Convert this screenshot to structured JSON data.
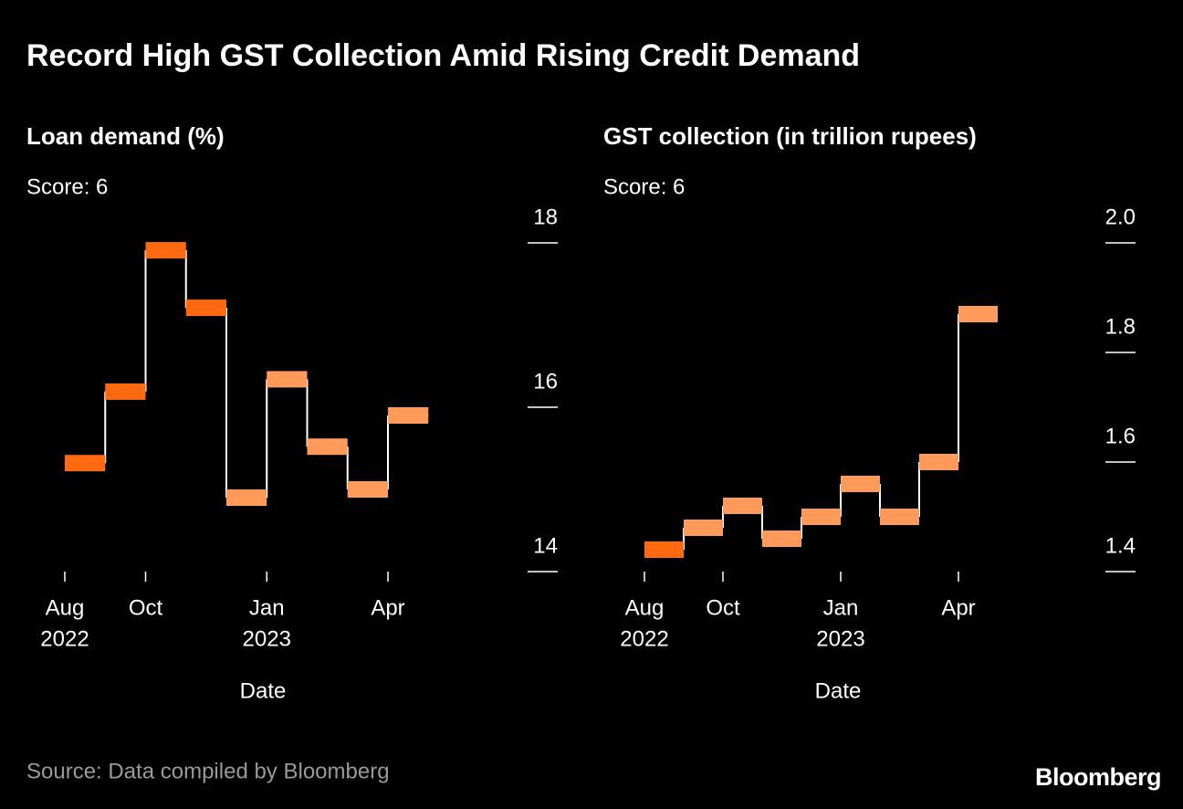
{
  "title": "Record High GST Collection Amid Rising Credit Demand",
  "source": "Source: Data compiled by Bloomberg",
  "logo": "Bloomberg",
  "chart_data": [
    {
      "type": "step",
      "title": "Loan demand (%)",
      "subtitle": "Score: 6",
      "x_label": "Date",
      "categories": [
        "Aug",
        null,
        "Oct",
        null,
        null,
        "Jan",
        null,
        null,
        "Apr"
      ],
      "category_years": [
        "2022",
        null,
        null,
        null,
        null,
        "2023",
        null,
        null,
        null
      ],
      "values": [
        15.32,
        16.19,
        17.91,
        17.21,
        14.9,
        16.34,
        15.52,
        15.0,
        15.9
      ],
      "colors": [
        "#ff6a10",
        "#ff6a10",
        "#ff6a10",
        "#ff6a10",
        "#ff9a5a",
        "#ff9a5a",
        "#ff9a5a",
        "#ff9a5a",
        "#ff9a5a"
      ],
      "line_color": "#ffffff",
      "ylim": [
        14,
        18
      ],
      "yticks": [
        14,
        16,
        18
      ]
    },
    {
      "type": "step",
      "title": "GST collection (in trillion rupees)",
      "subtitle": "Score: 6",
      "x_label": "Date",
      "categories": [
        "Aug",
        null,
        "Oct",
        null,
        null,
        "Jan",
        null,
        null,
        "Apr"
      ],
      "category_years": [
        "2022",
        null,
        null,
        null,
        null,
        "2023",
        null,
        null,
        null
      ],
      "values": [
        1.44,
        1.48,
        1.52,
        1.46,
        1.5,
        1.56,
        1.5,
        1.6,
        1.87
      ],
      "colors": [
        "#ff6a10",
        "#ff9a5a",
        "#ff9a5a",
        "#ff9a5a",
        "#ff9a5a",
        "#ff9a5a",
        "#ff9a5a",
        "#ff9a5a",
        "#ff9a5a"
      ],
      "line_color": "#ffffff",
      "ylim": [
        1.4,
        2.0
      ],
      "yticks": [
        1.4,
        1.6,
        1.8,
        {
          "value": 2.0,
          "label": "2.0"
        }
      ]
    }
  ]
}
